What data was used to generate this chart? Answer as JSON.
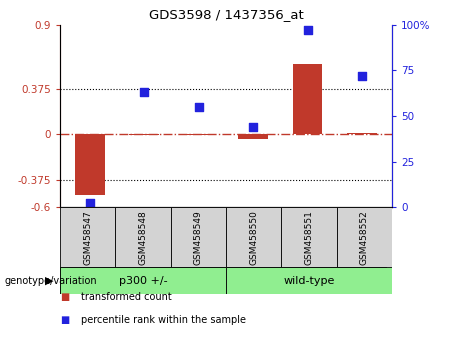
{
  "title": "GDS3598 / 1437356_at",
  "samples": [
    "GSM458547",
    "GSM458548",
    "GSM458549",
    "GSM458550",
    "GSM458551",
    "GSM458552"
  ],
  "transformed_count": [
    -0.5,
    -0.01,
    -0.01,
    -0.04,
    0.58,
    0.01
  ],
  "percentile_rank": [
    2,
    63,
    55,
    44,
    97,
    72
  ],
  "left_ylim": [
    -0.6,
    0.9
  ],
  "right_ylim": [
    0,
    100
  ],
  "left_yticks": [
    -0.6,
    -0.375,
    0,
    0.375,
    0.9
  ],
  "right_yticks": [
    0,
    25,
    50,
    75,
    100
  ],
  "left_ytick_labels": [
    "-0.6",
    "-0.375",
    "0",
    "0.375",
    "0.9"
  ],
  "right_ytick_labels": [
    "0",
    "25",
    "50",
    "75",
    "100%"
  ],
  "hlines": [
    0.375,
    -0.375
  ],
  "groups": [
    {
      "label": "p300 +/-",
      "indices": [
        0,
        1,
        2
      ],
      "color": "#90EE90"
    },
    {
      "label": "wild-type",
      "indices": [
        3,
        4,
        5
      ],
      "color": "#90EE90"
    }
  ],
  "bar_color": "#C0392B",
  "dot_color": "#2222DD",
  "bar_width": 0.55,
  "dot_size": 35,
  "plot_bg_color": "#ffffff",
  "zero_line_color": "#C0392B",
  "dotted_line_color": "#000000",
  "sample_box_color": "#D3D3D3",
  "genotype_label": "genotype/variation",
  "legend_items": [
    {
      "label": "transformed count",
      "color": "#C0392B"
    },
    {
      "label": "percentile rank within the sample",
      "color": "#2222DD"
    }
  ]
}
